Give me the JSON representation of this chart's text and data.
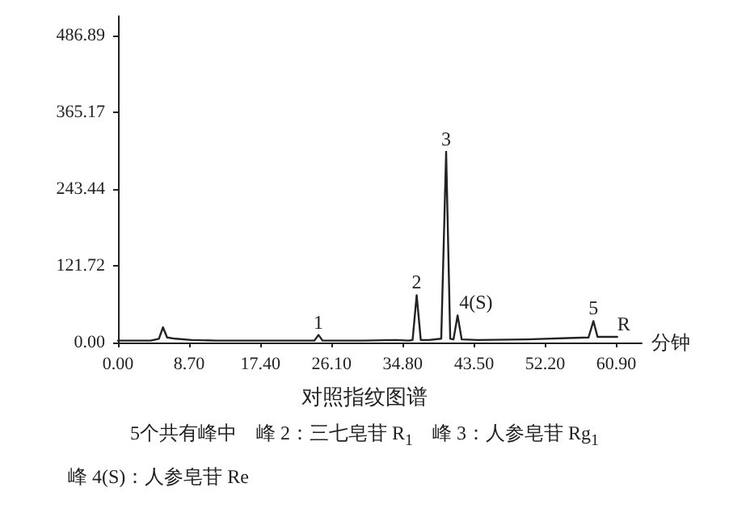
{
  "chart_data": {
    "type": "line",
    "xlabel": "分钟",
    "x": [
      0,
      4,
      5,
      5.5,
      6,
      7,
      9,
      12,
      16,
      20,
      24,
      24.5,
      25,
      30,
      34,
      35.5,
      36,
      36.5,
      37,
      38,
      39.5,
      40.1,
      40.6,
      41,
      41.5,
      42,
      44,
      50,
      55,
      57.5,
      58.1,
      58.6,
      60,
      61
    ],
    "series": [
      {
        "color": "#222222",
        "values": [
          3,
          3,
          6,
          24,
          8,
          6,
          4,
          3,
          3,
          3,
          3,
          12,
          3,
          3,
          4,
          3,
          4,
          75,
          4,
          4,
          6,
          302,
          6,
          5,
          43,
          5,
          4,
          5,
          7,
          8,
          34,
          9,
          9,
          9
        ]
      }
    ],
    "xlim": [
      0,
      64
    ],
    "xticks": [
      {
        "value": 0,
        "label": "0.00"
      },
      {
        "value": 8.7,
        "label": "8.70"
      },
      {
        "value": 17.4,
        "label": "17.40"
      },
      {
        "value": 26.1,
        "label": "26.10"
      },
      {
        "value": 34.8,
        "label": "34.80"
      },
      {
        "value": 43.5,
        "label": "43.50"
      },
      {
        "value": 52.2,
        "label": "52.20"
      },
      {
        "value": 60.9,
        "label": "60.90"
      }
    ],
    "ylim": [
      0,
      517
    ],
    "yticks": [
      {
        "value": 0,
        "label": "0.00"
      },
      121.72,
      243.44,
      365.17,
      486.89
    ],
    "grid": false,
    "marker": "none",
    "line_style": "solid",
    "annotations": [
      {
        "text": "1",
        "x": 24.5,
        "y": 12
      },
      {
        "text": "2",
        "x": 36.5,
        "y": 75
      },
      {
        "text": "3",
        "x": 40.1,
        "y": 302
      },
      {
        "text": "4(S)",
        "x": 41.5,
        "y": 43
      },
      {
        "text": "5",
        "x": 58.1,
        "y": 34
      },
      {
        "text": "R",
        "x": 61.8,
        "y": 9
      },
      "对照指纹图谱",
      "5个共有峰中　峰 2：三七皂苷 R$_{1}$　峰 3：人参皂苷 Rg$_{1}$",
      "峰 4(S)：人参皂苷 Re"
    ]
  }
}
